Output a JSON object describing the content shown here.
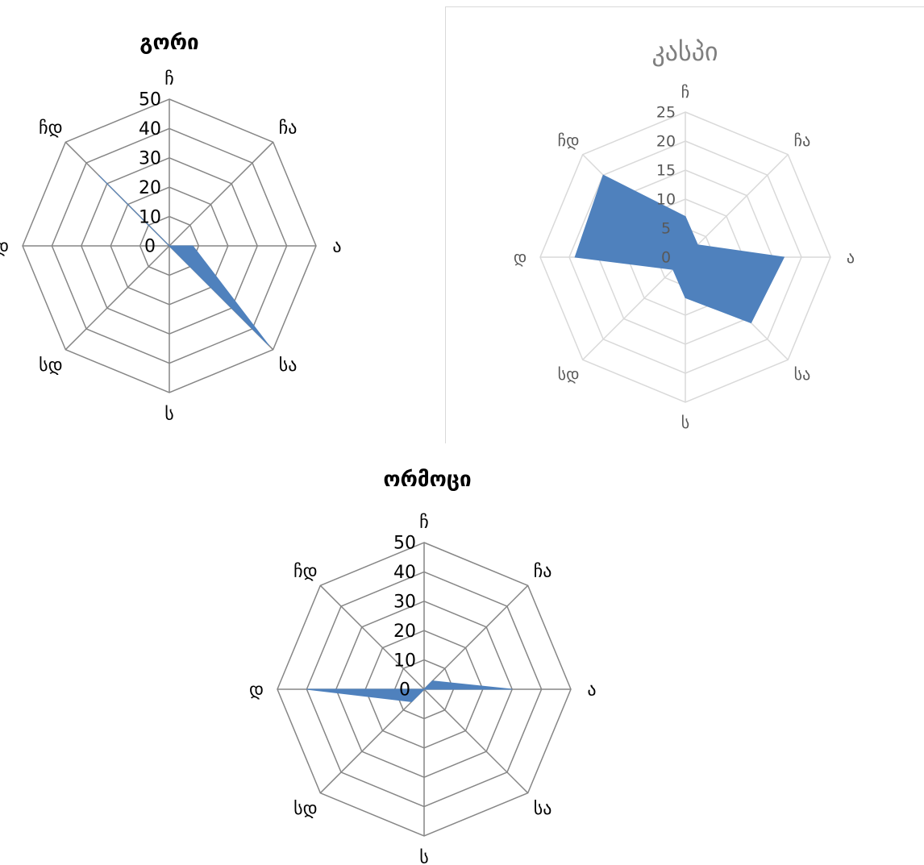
{
  "chart_data": [
    {
      "type": "radar",
      "title": "გორი",
      "categories": [
        "ჩ",
        "ჩა",
        "ა",
        "სა",
        "ს",
        "სდ",
        "დ",
        "ჩდ"
      ],
      "series": [
        {
          "values": [
            0,
            0,
            8,
            48,
            0,
            0,
            0,
            34
          ]
        }
      ],
      "ticks": [
        "0",
        "10",
        "20",
        "30",
        "40",
        "50"
      ],
      "rmax": 50,
      "colors": {
        "fill": "#4f81bd",
        "grid": "#868686",
        "text": "#000000"
      }
    },
    {
      "type": "radar",
      "title": "კასპი",
      "categories": [
        "ჩ",
        "ჩა",
        "ა",
        "სა",
        "ს",
        "სდ",
        "დ",
        "ჩდ"
      ],
      "series": [
        {
          "values": [
            7,
            3,
            17,
            16,
            7,
            3,
            19,
            20
          ]
        }
      ],
      "ticks": [
        "0",
        "5",
        "10",
        "15",
        "20",
        "25"
      ],
      "rmax": 25,
      "colors": {
        "fill": "#4f81bd",
        "grid": "#d9d9d9",
        "text": "#595959"
      }
    },
    {
      "type": "radar",
      "title": "ორმოცი",
      "categories": [
        "ჩ",
        "ჩა",
        "ა",
        "სა",
        "ს",
        "სდ",
        "დ",
        "ჩდ"
      ],
      "series": [
        {
          "values": [
            0,
            4,
            30,
            0,
            0,
            6,
            40,
            0
          ]
        }
      ],
      "ticks": [
        "0",
        "10",
        "20",
        "30",
        "40",
        "50"
      ],
      "rmax": 50,
      "colors": {
        "fill": "#4f81bd",
        "grid": "#868686",
        "text": "#000000"
      }
    }
  ]
}
